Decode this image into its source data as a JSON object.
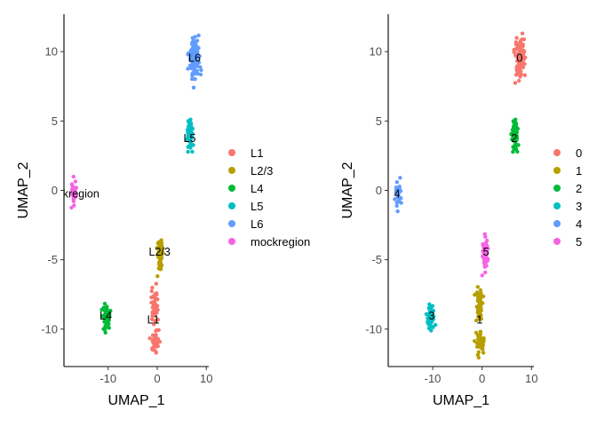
{
  "figure": {
    "background": "#ffffff",
    "axis_color": "#000000",
    "tick_text_color": "#4d4d4d"
  },
  "chart_data": [
    {
      "type": "scatter",
      "xlabel": "UMAP_1",
      "ylabel": "UMAP_2",
      "xlim": [
        -19,
        10.5
      ],
      "ylim": [
        -12.7,
        12.7
      ],
      "x_ticks": [
        -10,
        0,
        10
      ],
      "y_ticks": [
        -10,
        -5,
        0,
        5,
        10
      ],
      "grid": false,
      "legend_position": "right",
      "point_labels": true,
      "series": [
        {
          "name": "L1",
          "color": "#F8766D",
          "label": "L1",
          "label_at": [
            -0.8,
            -9.4
          ],
          "clusters": [
            {
              "center": [
                -0.6,
                -8.2
              ],
              "spread": [
                0.35,
                0.6
              ],
              "n": 45
            },
            {
              "center": [
                -0.5,
                -10.9
              ],
              "spread": [
                0.45,
                0.45
              ],
              "n": 45
            }
          ]
        },
        {
          "name": "L2/3",
          "color": "#B79F00",
          "label": "L2/3",
          "label_at": [
            0.5,
            -4.5
          ],
          "clusters": [
            {
              "center": [
                0.6,
                -4.6
              ],
              "spread": [
                0.3,
                0.6
              ],
              "n": 55
            }
          ]
        },
        {
          "name": "L4",
          "color": "#00BA38",
          "label": "L4",
          "label_at": [
            -10.5,
            -9.1
          ],
          "clusters": [
            {
              "center": [
                -10.4,
                -9.1
              ],
              "spread": [
                0.35,
                0.45
              ],
              "n": 55
            }
          ]
        },
        {
          "name": "L5",
          "color": "#00BFC4",
          "label": "L5",
          "label_at": [
            6.6,
            3.7
          ],
          "clusters": [
            {
              "center": [
                6.7,
                3.9
              ],
              "spread": [
                0.3,
                0.55
              ],
              "n": 60
            }
          ]
        },
        {
          "name": "L6",
          "color": "#619CFF",
          "label": "L6",
          "label_at": [
            7.6,
            9.5
          ],
          "clusters": [
            {
              "center": [
                7.6,
                9.6
              ],
              "spread": [
                0.5,
                0.7
              ],
              "n": 120
            }
          ]
        },
        {
          "name": "mockregion",
          "color": "#F564E3",
          "label": "kregion",
          "label_at": [
            -15.5,
            -0.3
          ],
          "clusters": [
            {
              "center": [
                -17.0,
                -0.1
              ],
              "spread": [
                0.25,
                0.45
              ],
              "n": 35
            }
          ]
        }
      ]
    },
    {
      "type": "scatter",
      "xlabel": "UMAP_1",
      "ylabel": "UMAP_2",
      "xlim": [
        -19,
        10.5
      ],
      "ylim": [
        -12.7,
        12.7
      ],
      "x_ticks": [
        -10,
        0,
        10
      ],
      "y_ticks": [
        -10,
        -5,
        0,
        5,
        10
      ],
      "grid": false,
      "legend_position": "right",
      "point_labels": true,
      "series": [
        {
          "name": "0",
          "color": "#F8766D",
          "label": "0",
          "label_at": [
            7.6,
            9.5
          ],
          "clusters": [
            {
              "center": [
                7.6,
                9.6
              ],
              "spread": [
                0.5,
                0.7
              ],
              "n": 120
            }
          ]
        },
        {
          "name": "1",
          "color": "#B79F00",
          "label": "1",
          "label_at": [
            -0.5,
            -9.4
          ],
          "clusters": [
            {
              "center": [
                -0.6,
                -8.2
              ],
              "spread": [
                0.35,
                0.6
              ],
              "n": 45
            },
            {
              "center": [
                -0.5,
                -10.9
              ],
              "spread": [
                0.45,
                0.45
              ],
              "n": 45
            }
          ]
        },
        {
          "name": "2",
          "color": "#00BA38",
          "label": "2",
          "label_at": [
            6.5,
            3.7
          ],
          "clusters": [
            {
              "center": [
                6.7,
                3.9
              ],
              "spread": [
                0.3,
                0.55
              ],
              "n": 60
            }
          ]
        },
        {
          "name": "3",
          "color": "#00BFC4",
          "label": "3",
          "label_at": [
            -10.2,
            -9.1
          ],
          "clusters": [
            {
              "center": [
                -10.4,
                -9.1
              ],
              "spread": [
                0.35,
                0.45
              ],
              "n": 55
            }
          ]
        },
        {
          "name": "4",
          "color": "#619CFF",
          "label": "4",
          "label_at": [
            -17.2,
            -0.3
          ],
          "clusters": [
            {
              "center": [
                -17.0,
                -0.1
              ],
              "spread": [
                0.25,
                0.45
              ],
              "n": 35
            }
          ]
        },
        {
          "name": "5",
          "color": "#F564E3",
          "label": "5",
          "label_at": [
            0.8,
            -4.5
          ],
          "clusters": [
            {
              "center": [
                0.6,
                -4.6
              ],
              "spread": [
                0.3,
                0.6
              ],
              "n": 55
            }
          ]
        }
      ]
    }
  ]
}
